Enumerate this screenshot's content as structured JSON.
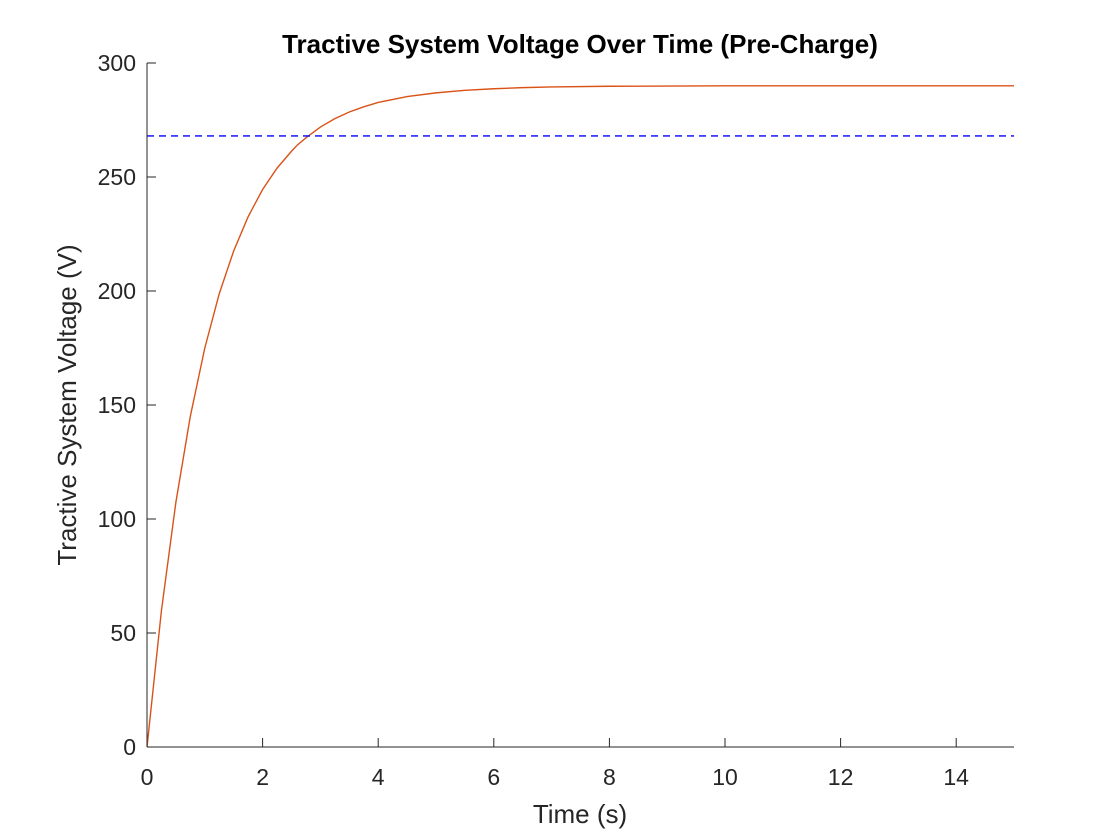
{
  "chart_data": {
    "type": "line",
    "title": "Tractive System Voltage Over Time (Pre-Charge)",
    "xlabel": "Time (s)",
    "ylabel": "Tractive System Voltage (V)",
    "xlim": [
      0,
      15
    ],
    "ylim": [
      0,
      300
    ],
    "xticks": [
      0,
      2,
      4,
      6,
      8,
      10,
      12,
      14
    ],
    "yticks": [
      0,
      50,
      100,
      150,
      200,
      250,
      300
    ],
    "xtick_labels": [
      "0",
      "2",
      "4",
      "6",
      "8",
      "10",
      "12",
      "14"
    ],
    "ytick_labels": [
      "0",
      "50",
      "100",
      "150",
      "200",
      "250",
      "300"
    ],
    "grid": false,
    "box": "left-bottom",
    "series": [
      {
        "style": "solid",
        "color": "#D95319",
        "x": [
          0,
          0.25,
          0.5,
          0.75,
          1,
          1.25,
          1.5,
          1.75,
          2,
          2.25,
          2.5,
          2.6,
          2.75,
          3,
          3.25,
          3.5,
          3.75,
          4,
          4.5,
          5,
          5.5,
          6,
          6.5,
          7,
          8,
          9,
          10,
          12,
          15
        ],
        "y": [
          0,
          59.9,
          107.4,
          145.1,
          175,
          198.8,
          217.6,
          232.6,
          244.5,
          253.9,
          261.3,
          264,
          267.2,
          271.9,
          275.6,
          278.5,
          280.8,
          282.7,
          285.3,
          286.9,
          288.0,
          288.7,
          289.2,
          289.5,
          289.8,
          289.9,
          290.0,
          290.0,
          290.0
        ]
      },
      {
        "style": "dashed",
        "color": "#0000FF",
        "x": [
          0,
          15
        ],
        "y": [
          268,
          268
        ]
      }
    ]
  }
}
